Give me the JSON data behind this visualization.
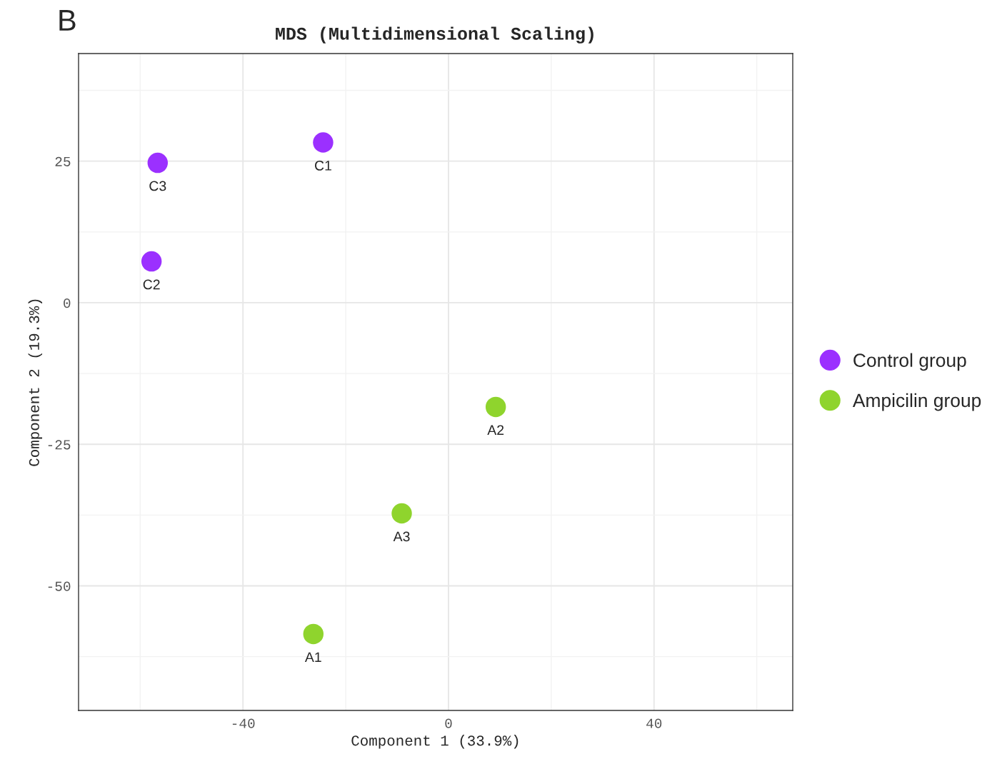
{
  "chart_data": {
    "type": "scatter",
    "title": "MDS (Multidimensional Scaling)",
    "xlabel": "Component 1 (33.9%)",
    "ylabel": "Component 2 (19.3%)",
    "series": [
      {
        "name": "Control group",
        "color": "#9b30ff",
        "x": [
          -24.4,
          -57.8,
          -56.6
        ],
        "values": [
          28.3,
          7.3,
          24.7
        ]
      },
      {
        "name": "Ampicilin group",
        "color": "#8fd42d",
        "x": [
          -26.3,
          9.2,
          -9.1
        ],
        "values": [
          -58.5,
          -18.4,
          -37.2
        ]
      }
    ],
    "annotations": [
      "B",
      {
        "text": "C1",
        "x": -24.4,
        "y": 28.3
      },
      {
        "text": "C2",
        "x": -57.8,
        "y": 7.3
      },
      {
        "text": "C3",
        "x": -56.6,
        "y": 24.7
      },
      {
        "text": "A1",
        "x": -26.3,
        "y": -58.5
      },
      {
        "text": "A2",
        "x": 9.2,
        "y": -18.4
      },
      {
        "text": "A3",
        "x": -9.1,
        "y": -37.2
      }
    ],
    "xlim": [
      -72,
      67
    ],
    "ylim": [
      -72,
      44
    ],
    "xticks": [
      -40,
      0,
      40
    ],
    "yticks": [
      -50,
      -25,
      0,
      25
    ],
    "grid": true,
    "legend": "right",
    "marker": "circle"
  }
}
